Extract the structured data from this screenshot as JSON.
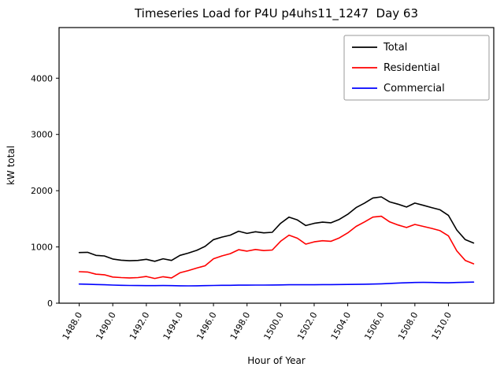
{
  "chart_data": {
    "type": "line",
    "title": "Timeseries Load for P4U p4uhs11_1247  Day 63",
    "xlabel": "Hour of Year",
    "ylabel": "kW total",
    "xlim": [
      1486.8,
      1512.7
    ],
    "ylim": [
      0,
      4900
    ],
    "grid": false,
    "legend_position": "upper right",
    "x_tick_values": [
      1488,
      1490,
      1492,
      1494,
      1496,
      1498,
      1500,
      1502,
      1504,
      1506,
      1508,
      1510
    ],
    "x_tick_labels": [
      "1488.0",
      "1490.0",
      "1492.0",
      "1494.0",
      "1496.0",
      "1498.0",
      "1500.0",
      "1502.0",
      "1504.0",
      "1506.0",
      "1508.0",
      "1510.0"
    ],
    "y_tick_values": [
      0,
      1000,
      2000,
      3000,
      4000
    ],
    "y_tick_labels": [
      "0",
      "1000",
      "2000",
      "3000",
      "4000"
    ],
    "x": [
      1488.0,
      1488.5,
      1489.0,
      1489.5,
      1490.0,
      1490.5,
      1491.0,
      1491.5,
      1492.0,
      1492.5,
      1493.0,
      1493.5,
      1494.0,
      1494.5,
      1495.0,
      1495.5,
      1496.0,
      1496.5,
      1497.0,
      1497.5,
      1498.0,
      1498.5,
      1499.0,
      1499.5,
      1500.0,
      1500.5,
      1501.0,
      1501.5,
      1502.0,
      1502.5,
      1503.0,
      1503.5,
      1504.0,
      1504.5,
      1505.0,
      1505.5,
      1506.0,
      1506.5,
      1507.0,
      1507.5,
      1508.0,
      1508.5,
      1509.0,
      1509.5,
      1510.0,
      1510.5,
      1511.0,
      1511.5
    ],
    "series": [
      {
        "name": "Total",
        "color": "#000000",
        "values": [
          900,
          905,
          850,
          840,
          785,
          765,
          755,
          760,
          780,
          745,
          790,
          760,
          850,
          890,
          940,
          1010,
          1130,
          1175,
          1210,
          1280,
          1240,
          1270,
          1250,
          1260,
          1420,
          1530,
          1480,
          1380,
          1420,
          1440,
          1430,
          1490,
          1580,
          1700,
          1780,
          1870,
          1890,
          1800,
          1760,
          1710,
          1780,
          1740,
          1700,
          1660,
          1560,
          1300,
          1130,
          1070
        ]
      },
      {
        "name": "Residential",
        "color": "#ff0000",
        "values": [
          560,
          555,
          515,
          505,
          465,
          455,
          450,
          455,
          475,
          440,
          470,
          450,
          540,
          580,
          625,
          665,
          790,
          840,
          880,
          950,
          925,
          955,
          935,
          945,
          1100,
          1210,
          1155,
          1050,
          1090,
          1110,
          1100,
          1160,
          1250,
          1365,
          1445,
          1530,
          1545,
          1445,
          1390,
          1345,
          1400,
          1365,
          1330,
          1290,
          1195,
          930,
          760,
          700
        ]
      },
      {
        "name": "Commercial",
        "color": "#0000ff",
        "values": [
          340,
          338,
          332,
          328,
          322,
          318,
          315,
          313,
          312,
          312,
          313,
          312,
          310,
          308,
          310,
          312,
          315,
          318,
          318,
          320,
          320,
          322,
          322,
          323,
          325,
          328,
          328,
          327,
          328,
          330,
          330,
          332,
          333,
          335,
          337,
          340,
          345,
          352,
          358,
          362,
          368,
          370,
          368,
          366,
          362,
          368,
          372,
          375
        ]
      }
    ]
  }
}
